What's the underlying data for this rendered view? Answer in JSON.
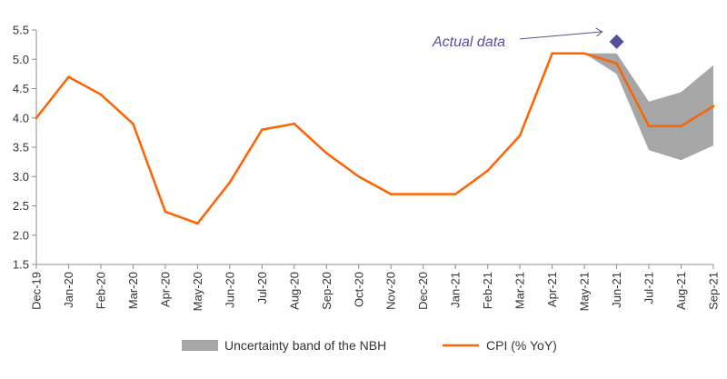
{
  "chart_data": {
    "type": "line",
    "x": [
      "Dec-19",
      "Jan-20",
      "Feb-20",
      "Mar-20",
      "Apr-20",
      "May-20",
      "Jun-20",
      "Jul-20",
      "Aug-20",
      "Sep-20",
      "Oct-20",
      "Nov-20",
      "Dec-20",
      "Jan-21",
      "Feb-21",
      "Mar-21",
      "Apr-21",
      "May-21",
      "Jun-21",
      "Jul-21",
      "Aug-21",
      "Sep-21"
    ],
    "series": [
      {
        "name": "CPI (% YoY)",
        "values": [
          4.0,
          4.7,
          4.4,
          3.9,
          2.4,
          2.2,
          2.9,
          3.8,
          3.9,
          3.4,
          3.0,
          2.7,
          2.7,
          2.7,
          3.1,
          3.7,
          5.1,
          5.1,
          4.93,
          3.86,
          3.86,
          4.2
        ],
        "color": "#ff6200"
      }
    ],
    "band": {
      "name": "Uncertainty band of the NBH",
      "x": [
        "May-21",
        "Jun-21",
        "Jul-21",
        "Aug-21",
        "Sep-21"
      ],
      "lower": [
        5.1,
        4.75,
        3.45,
        3.28,
        3.53
      ],
      "upper": [
        5.1,
        5.1,
        4.28,
        4.44,
        4.9
      ],
      "color": "#a6a6a6"
    },
    "annotation": {
      "text": "Actual data",
      "x": "Jun-21",
      "value": 5.3,
      "marker": "diamond",
      "color": "#525199"
    },
    "ylim": [
      1.5,
      5.5
    ],
    "yticks": [
      1.5,
      2.0,
      2.5,
      3.0,
      3.5,
      4.0,
      4.5,
      5.0,
      5.5
    ],
    "grid": false,
    "legend": "bottom",
    "title": "",
    "xlabel": "",
    "ylabel": ""
  }
}
